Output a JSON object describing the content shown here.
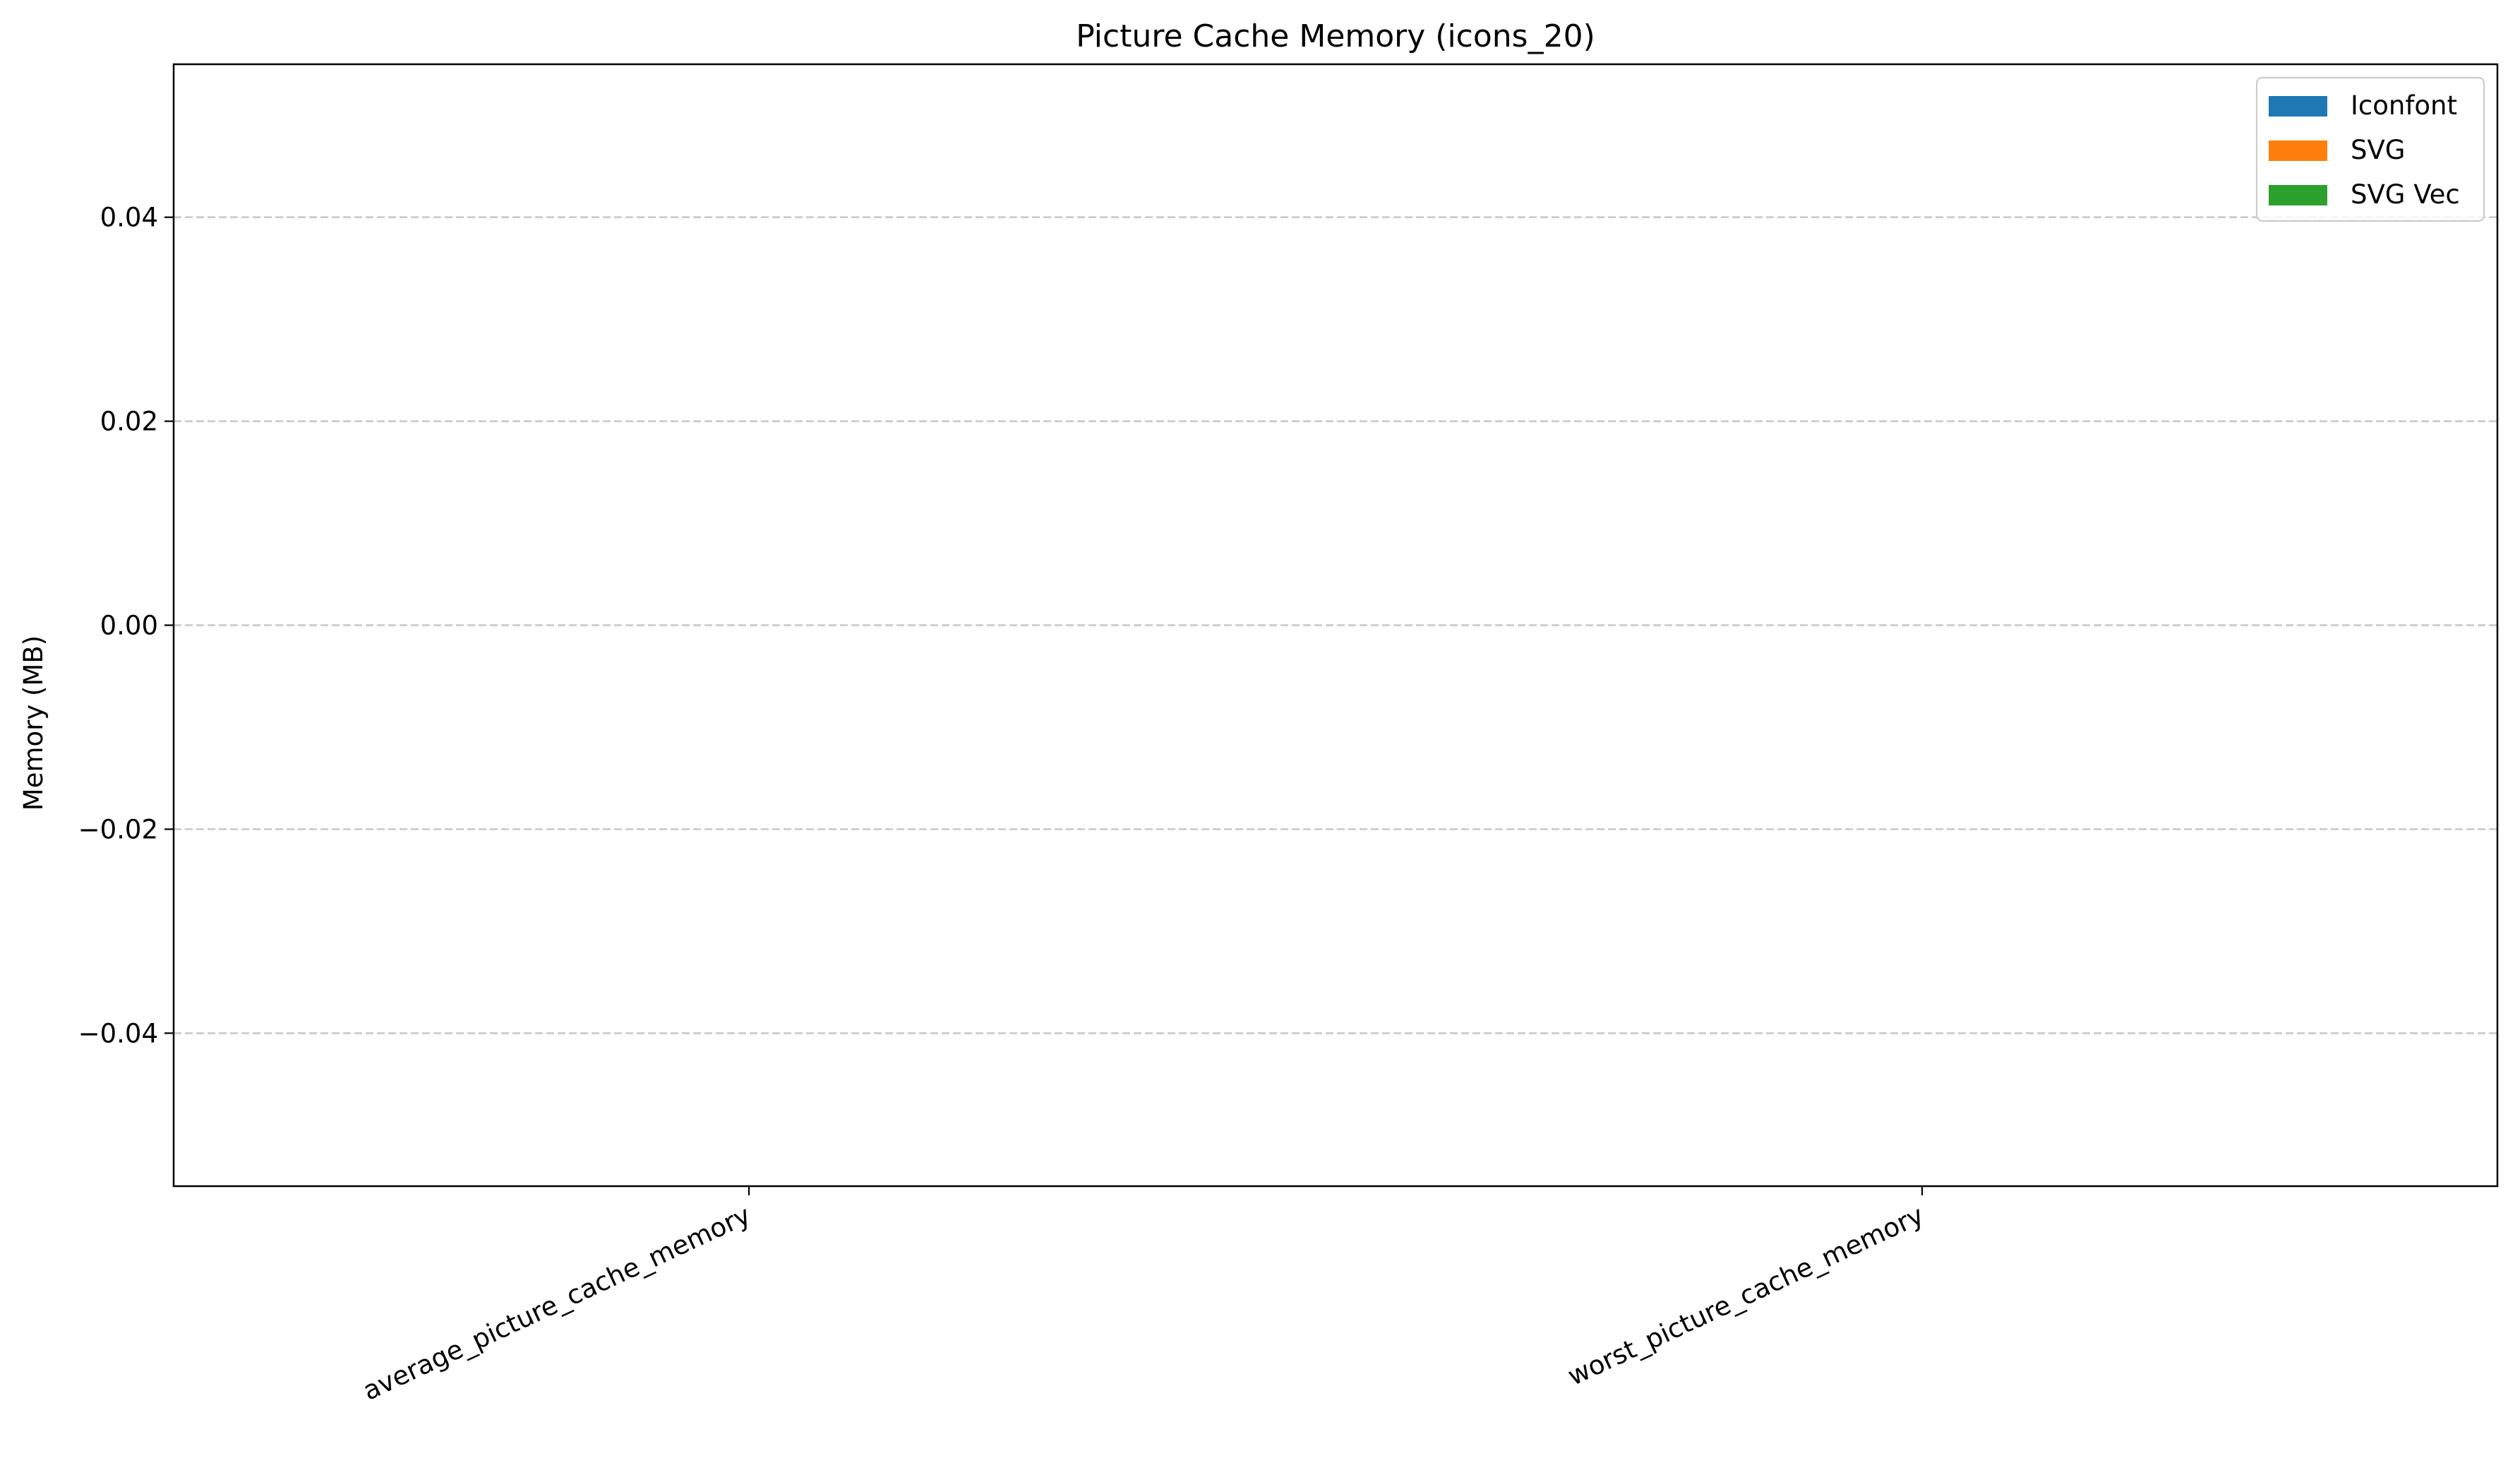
{
  "chart_data": {
    "type": "bar",
    "title": "Picture Cache Memory (icons_20)",
    "xlabel": "",
    "ylabel": "Memory (MB)",
    "categories": [
      "average_picture_cache_memory",
      "worst_picture_cache_memory"
    ],
    "series": [
      {
        "name": "Iconfont",
        "color": "#1f77b4",
        "values": [
          0,
          0
        ]
      },
      {
        "name": "SVG",
        "color": "#ff7f0e",
        "values": [
          0,
          0
        ]
      },
      {
        "name": "SVG Vec",
        "color": "#2ca02c",
        "values": [
          0,
          0
        ]
      }
    ],
    "ylim": [
      -0.055,
      0.055
    ],
    "yticks": [
      -0.04,
      -0.02,
      0.0,
      0.02,
      0.04
    ],
    "ytick_labels": [
      "−0.04",
      "−0.02",
      "0.00",
      "0.02",
      "0.04"
    ],
    "grid": "y-dashed",
    "legend_position": "top-right"
  }
}
